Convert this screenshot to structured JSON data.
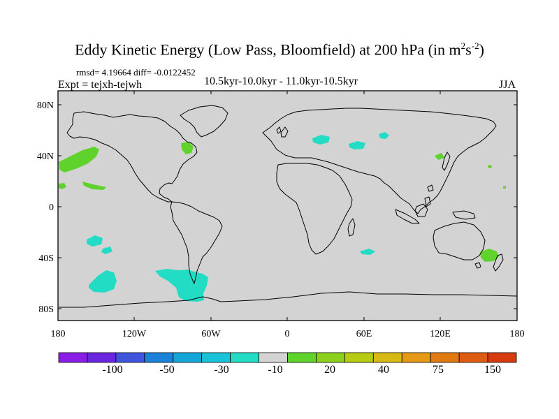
{
  "title": {
    "main": "Eddy Kinetic Energy (Low Pass, Bloomfield) at 200 hPa (in m",
    "sup1": "2",
    "mid": "s",
    "sup2": "-2",
    "close": ")"
  },
  "stats": "rmsd= 4.19664 diff= -0.0122452",
  "expt": "Expt = tejxh-tejwh",
  "period": "10.5kyr-10.0kyr - 11.0kyr-10.5kyr",
  "season": "JJA",
  "lat_ticks": [
    "80N",
    "40N",
    "0",
    "40S",
    "80S"
  ],
  "lon_ticks": [
    "180",
    "120W",
    "60W",
    "0",
    "60E",
    "120E",
    "180"
  ],
  "colorbar": {
    "colors": [
      "#8a1ee8",
      "#6a25e0",
      "#3f56dc",
      "#1b82d8",
      "#13a6d6",
      "#18c3d8",
      "#22dcc4",
      "#d3d3d3",
      "#5fd22c",
      "#8ccf1c",
      "#b6cc12",
      "#d8b814",
      "#e49a14",
      "#e27a12",
      "#dd5c12",
      "#d73a10"
    ],
    "labels": [
      "-100",
      "-50",
      "-30",
      "-10",
      "20",
      "40",
      "75",
      "150"
    ]
  },
  "colors": {
    "ocean": "#d3d3d3",
    "coast": "#000000"
  }
}
